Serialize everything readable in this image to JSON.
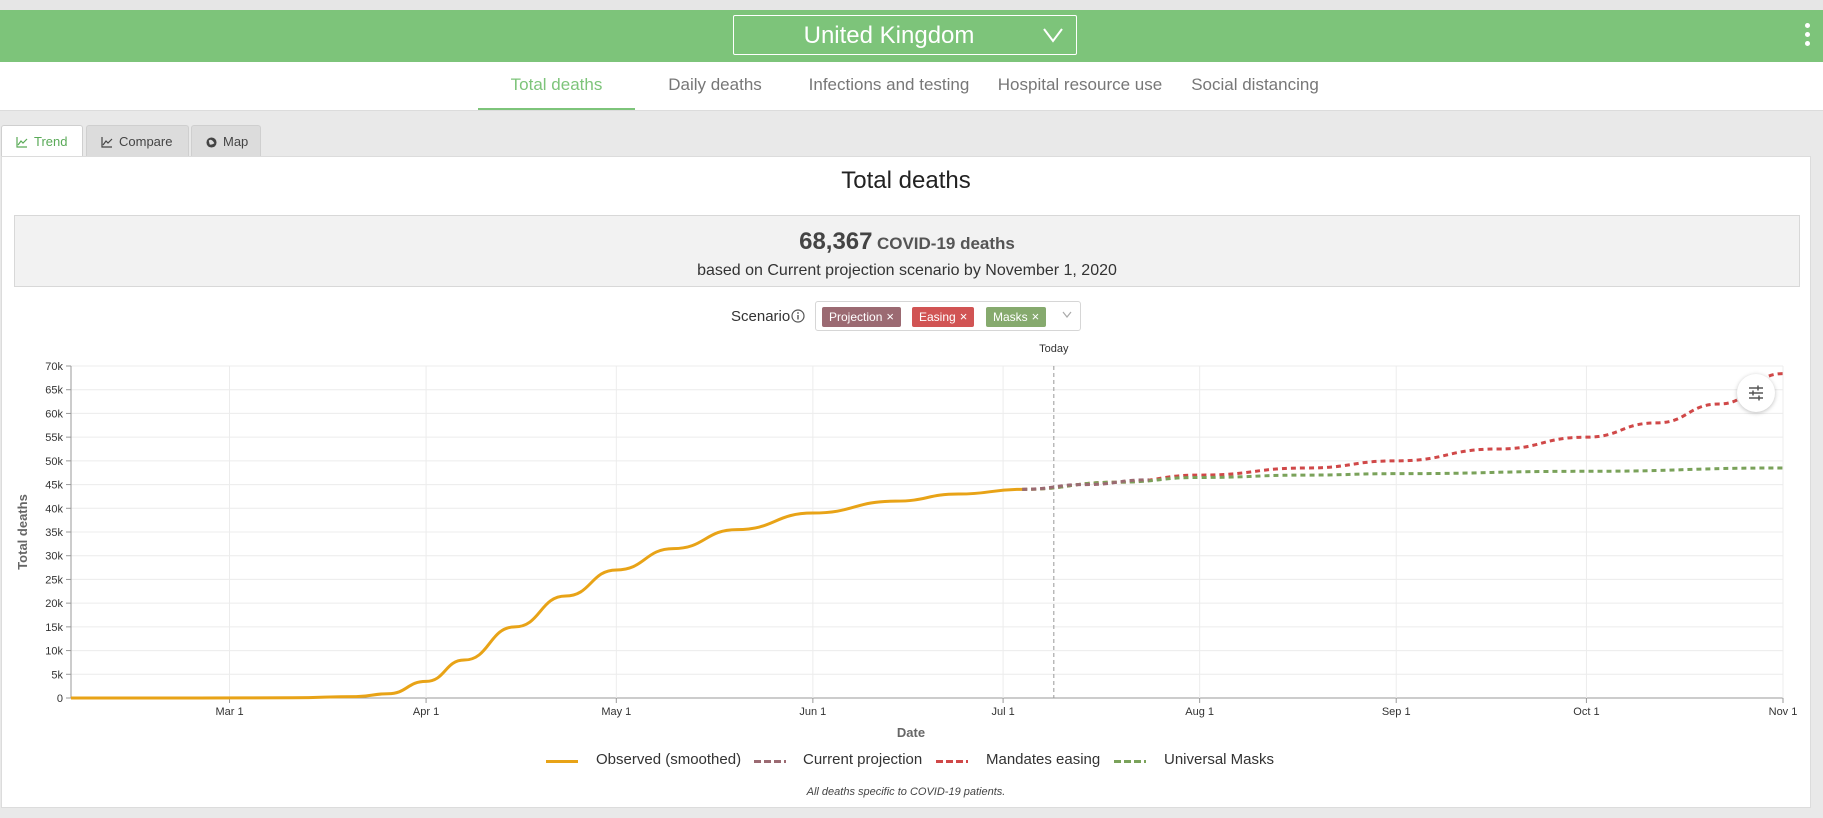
{
  "header": {
    "country": "United Kingdom",
    "brand_color": "#7dc47a"
  },
  "nav": {
    "tabs": [
      {
        "label": "Total deaths",
        "active": true
      },
      {
        "label": "Daily deaths",
        "active": false
      },
      {
        "label": "Infections and testing",
        "active": false
      },
      {
        "label": "Hospital resource use",
        "active": false
      },
      {
        "label": "Social distancing",
        "active": false
      }
    ]
  },
  "subtabs": [
    {
      "label": "Trend",
      "icon": "trend-icon",
      "active": true
    },
    {
      "label": "Compare",
      "icon": "compare-icon",
      "active": false
    },
    {
      "label": "Map",
      "icon": "globe-icon",
      "active": false
    }
  ],
  "panel": {
    "title": "Total deaths",
    "summary_value": "68,367",
    "summary_unit": "COVID-19 deaths",
    "summary_note": "based on Current projection scenario by November 1, 2020"
  },
  "scenario": {
    "label": "Scenario",
    "tags": [
      {
        "label": "Projection",
        "color": "#9b6a72"
      },
      {
        "label": "Easing",
        "color": "#d15454"
      },
      {
        "label": "Masks",
        "color": "#86aa6e"
      }
    ]
  },
  "chart_data": {
    "type": "line",
    "title": "",
    "xlabel": "Date",
    "ylabel": "Total deaths",
    "x_range": [
      "2020-02-05",
      "2020-11-01"
    ],
    "ylim": [
      0,
      70000
    ],
    "y_ticks": [
      "0",
      "5k",
      "10k",
      "15k",
      "20k",
      "25k",
      "30k",
      "35k",
      "40k",
      "45k",
      "50k",
      "55k",
      "60k",
      "65k",
      "70k"
    ],
    "x_ticks": [
      {
        "label": "Mar 1",
        "day": 25
      },
      {
        "label": "Apr 1",
        "day": 56
      },
      {
        "label": "May 1",
        "day": 86
      },
      {
        "label": "Jun 1",
        "day": 117
      },
      {
        "label": "Jul 1",
        "day": 147
      },
      {
        "label": "Aug 1",
        "day": 178
      },
      {
        "label": "Sep 1",
        "day": 209
      },
      {
        "label": "Oct 1",
        "day": 239
      },
      {
        "label": "Nov 1",
        "day": 270
      }
    ],
    "today": {
      "label": "Today",
      "day": 155
    },
    "series": [
      {
        "name": "Observed (smoothed)",
        "color": "#e8a317",
        "dash": "solid",
        "points": [
          [
            0,
            0
          ],
          [
            20,
            0
          ],
          [
            35,
            50
          ],
          [
            45,
            300
          ],
          [
            50,
            900
          ],
          [
            56,
            3500
          ],
          [
            62,
            8000
          ],
          [
            70,
            15000
          ],
          [
            78,
            21500
          ],
          [
            86,
            27000
          ],
          [
            95,
            31500
          ],
          [
            105,
            35500
          ],
          [
            117,
            39000
          ],
          [
            130,
            41500
          ],
          [
            140,
            43000
          ],
          [
            150,
            44000
          ]
        ]
      },
      {
        "name": "Current projection",
        "color": "#9b6a72",
        "dash": "dashed",
        "points": [
          [
            150,
            44000
          ],
          [
            160,
            45000
          ],
          [
            170,
            46000
          ]
        ]
      },
      {
        "name": "Mandates easing",
        "color": "#d04848",
        "dash": "dashed",
        "points": [
          [
            150,
            44000
          ],
          [
            165,
            45500
          ],
          [
            178,
            47000
          ],
          [
            195,
            48500
          ],
          [
            209,
            50000
          ],
          [
            225,
            52500
          ],
          [
            239,
            55000
          ],
          [
            250,
            58000
          ],
          [
            260,
            62000
          ],
          [
            270,
            68400
          ]
        ]
      },
      {
        "name": "Universal Masks",
        "color": "#7aa25a",
        "dash": "dashed",
        "points": [
          [
            150,
            44000
          ],
          [
            165,
            45500
          ],
          [
            178,
            46500
          ],
          [
            195,
            47000
          ],
          [
            209,
            47300
          ],
          [
            239,
            47800
          ],
          [
            270,
            48500
          ]
        ]
      }
    ]
  },
  "footnote": "All deaths specific to COVID-19 patients."
}
